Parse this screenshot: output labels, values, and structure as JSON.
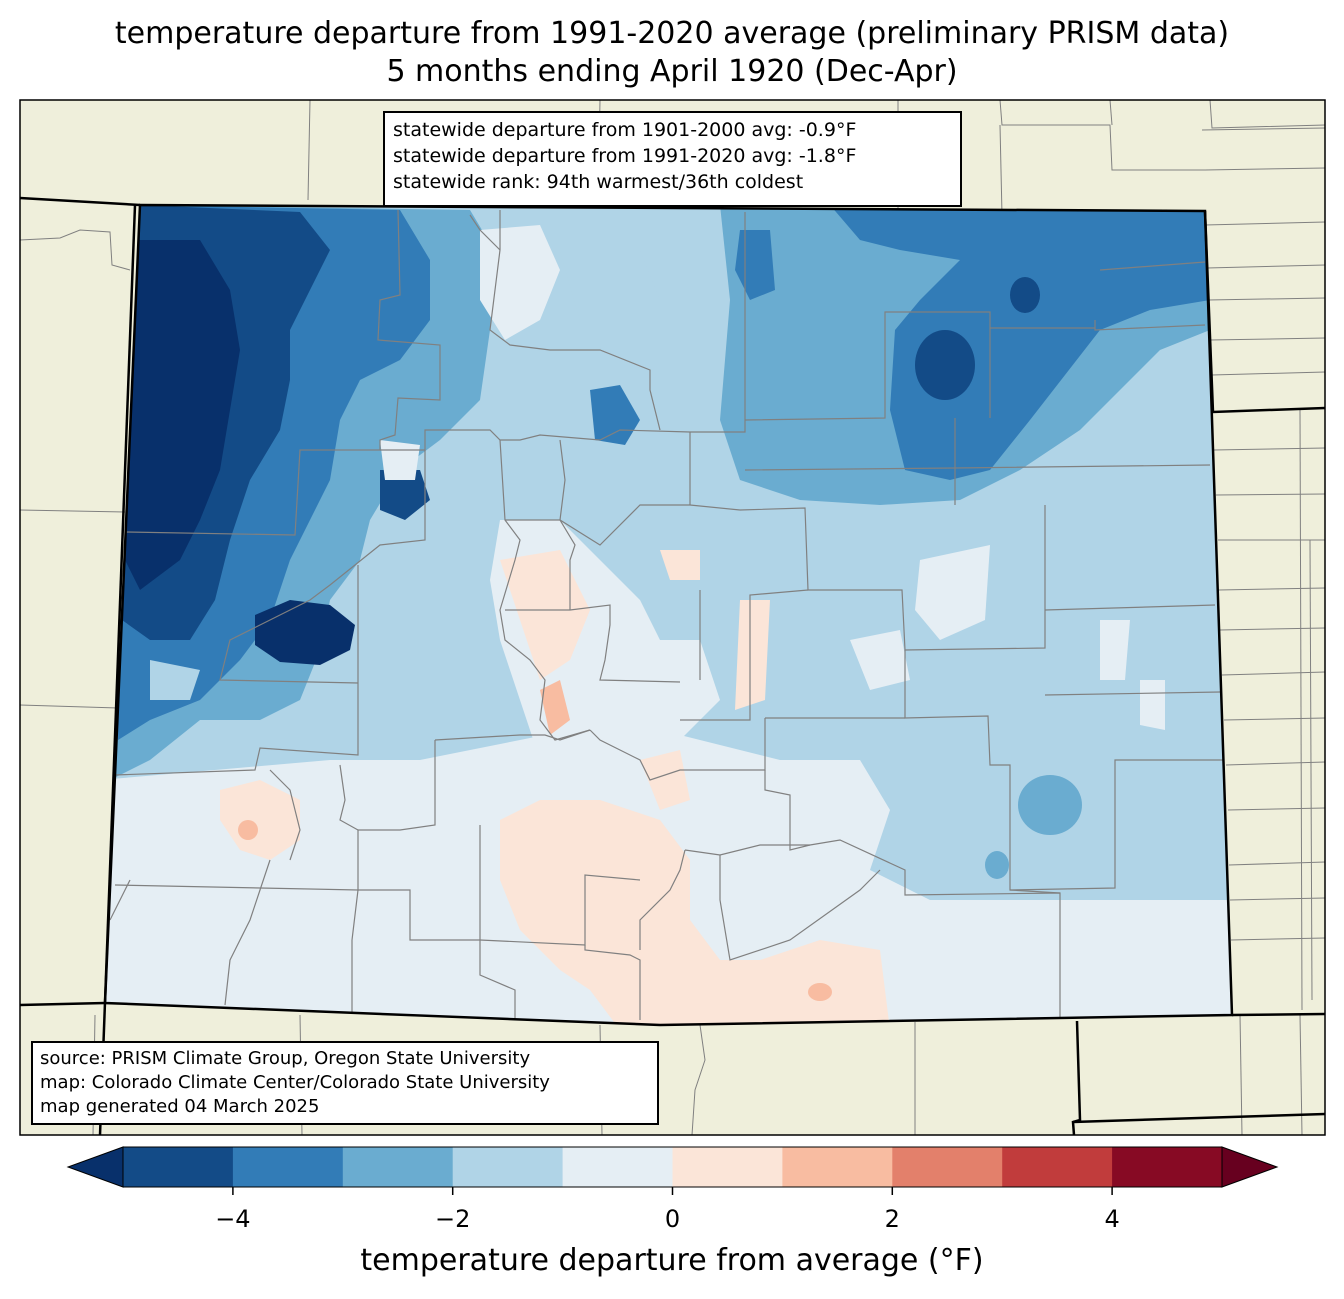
{
  "title": {
    "line1": "temperature departure from 1991-2020 average (preliminary PRISM data)",
    "line2": "5 months ending April 1920 (Dec-Apr)"
  },
  "stats": {
    "line1": "statewide departure from 1901-2000 avg: -0.9°F",
    "line2": "statewide departure from 1991-2020 avg: -1.8°F",
    "line3": "statewide rank: 94th warmest/36th coldest"
  },
  "source": {
    "line1": "source: PRISM Climate Group, Oregon State University",
    "line2": "map: Colorado Climate Center/Colorado State University",
    "line3": "map generated 04 March 2025"
  },
  "colorbar": {
    "label": "temperature departure from average (°F)",
    "ticks": [
      {
        "value": -4,
        "label": "−4"
      },
      {
        "value": -2,
        "label": "−2"
      },
      {
        "value": 0,
        "label": "0"
      },
      {
        "value": 2,
        "label": "2"
      },
      {
        "value": 4,
        "label": "4"
      }
    ],
    "range": [
      -5,
      5
    ],
    "bins": [
      {
        "from": -5,
        "to": -4,
        "color": "#134b87"
      },
      {
        "from": -4,
        "to": -3,
        "color": "#327cb7"
      },
      {
        "from": -3,
        "to": -2,
        "color": "#6aacd0"
      },
      {
        "from": -2,
        "to": -1,
        "color": "#b0d4e7"
      },
      {
        "from": -1,
        "to": 0,
        "color": "#e5eef4"
      },
      {
        "from": 0,
        "to": 1,
        "color": "#fbe5d8"
      },
      {
        "from": 1,
        "to": 2,
        "color": "#f8bca1"
      },
      {
        "from": 2,
        "to": 3,
        "color": "#e3806b"
      },
      {
        "from": 3,
        "to": 4,
        "color": "#c13c3c"
      },
      {
        "from": 4,
        "to": 5,
        "color": "#870a24"
      }
    ],
    "under_color": "#08306b",
    "over_color": "#67001f"
  },
  "colors": {
    "land": "#efefdb",
    "colorado_base": "#b0d4e7",
    "county_lines": "#808080",
    "state_lines": "#000000"
  }
}
